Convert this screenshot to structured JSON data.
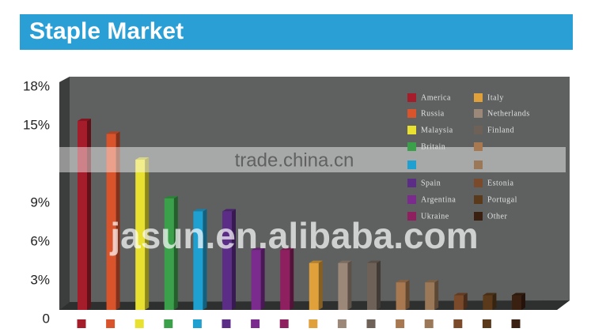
{
  "chart_data": {
    "type": "bar",
    "title": "Staple Market",
    "categories": [
      "America",
      "Russia",
      "Malaysia",
      "Britain",
      null,
      "Spain",
      "Argentina",
      "Ukraine",
      "Italy",
      "Netherlands",
      "Finland",
      null,
      null,
      "Estonia",
      "Portugal",
      "Other"
    ],
    "values": [
      15,
      14,
      12,
      9,
      8,
      8,
      5,
      5,
      4,
      4,
      4,
      2.5,
      2.5,
      1.5,
      1.5,
      1.5
    ],
    "colors": [
      "#a51c2a",
      "#d9532b",
      "#e8e12f",
      "#3aa04a",
      "#1ea0d0",
      "#5b2d86",
      "#7b2a8e",
      "#8e2060",
      "#e0a03a",
      "#9c8878",
      "#6e6258",
      "#a87850",
      "#9a7858",
      "#7a4a2a",
      "#5a3a1a",
      "#3a2010"
    ],
    "ylim": [
      0,
      18
    ],
    "yticks": [
      0,
      {
        "value": 3,
        "label": "3%"
      },
      {
        "value": 6,
        "label": "6%"
      },
      {
        "value": 9,
        "label": "9%"
      },
      {
        "value": 15,
        "label": "15%"
      },
      {
        "value": 18,
        "label": "18%"
      }
    ],
    "watermarks": [
      "trade.china.cn",
      "jasun.en.alibaba.com"
    ]
  }
}
